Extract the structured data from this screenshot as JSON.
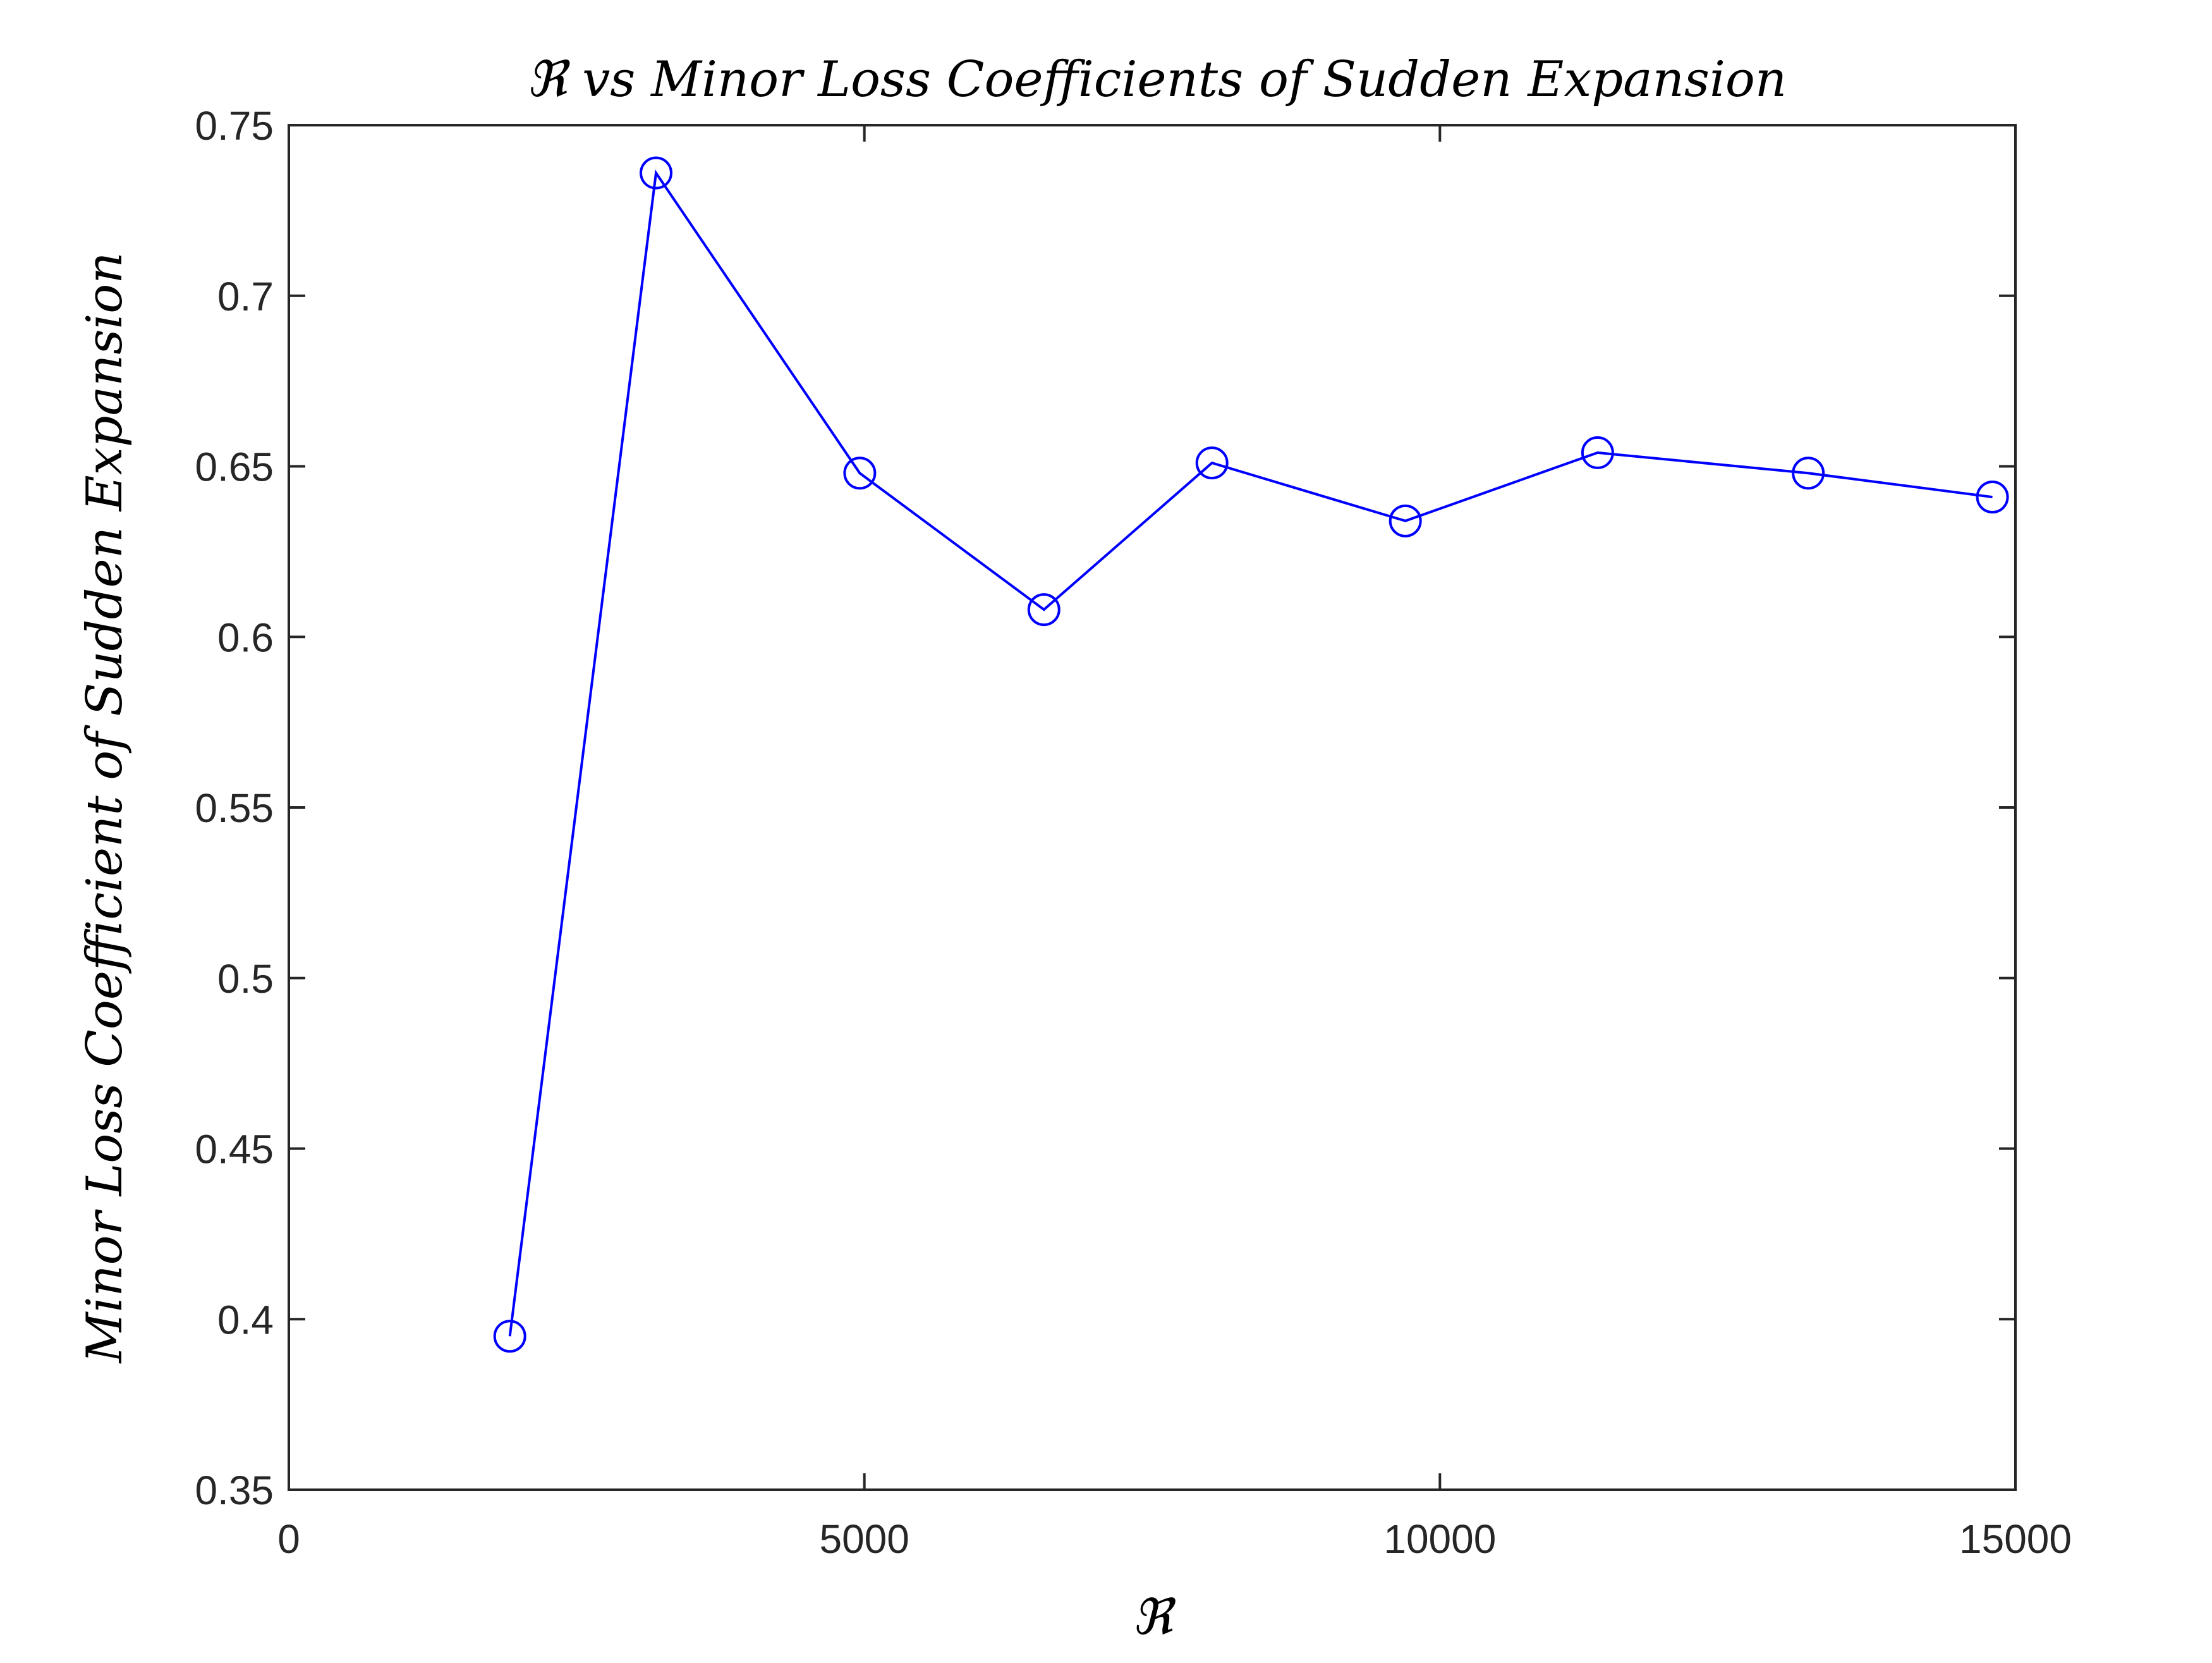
{
  "chart_data": {
    "type": "line",
    "title": "ℜ vs Minor Loss Coefficients of Sudden Expansion",
    "xlabel": "ℜ",
    "ylabel": "Minor Loss Coefficient of Sudden Expansion",
    "xlim": [
      0,
      15000
    ],
    "ylim": [
      0.35,
      0.75
    ],
    "x_ticks": [
      "0",
      "5000",
      "10000",
      "15000"
    ],
    "y_ticks": [
      "0.35",
      "0.4",
      "0.45",
      "0.5",
      "0.55",
      "0.6",
      "0.65",
      "0.7",
      "0.75"
    ],
    "grid": false,
    "legend": "none",
    "series": [
      {
        "x": [
          1920,
          3190,
          4960,
          6560,
          8020,
          9700,
          11370,
          13200,
          14800
        ],
        "y": [
          0.395,
          0.736,
          0.648,
          0.608,
          0.651,
          0.634,
          0.654,
          0.648,
          0.641
        ],
        "color": "#0000ff",
        "marker": "circle"
      }
    ]
  }
}
